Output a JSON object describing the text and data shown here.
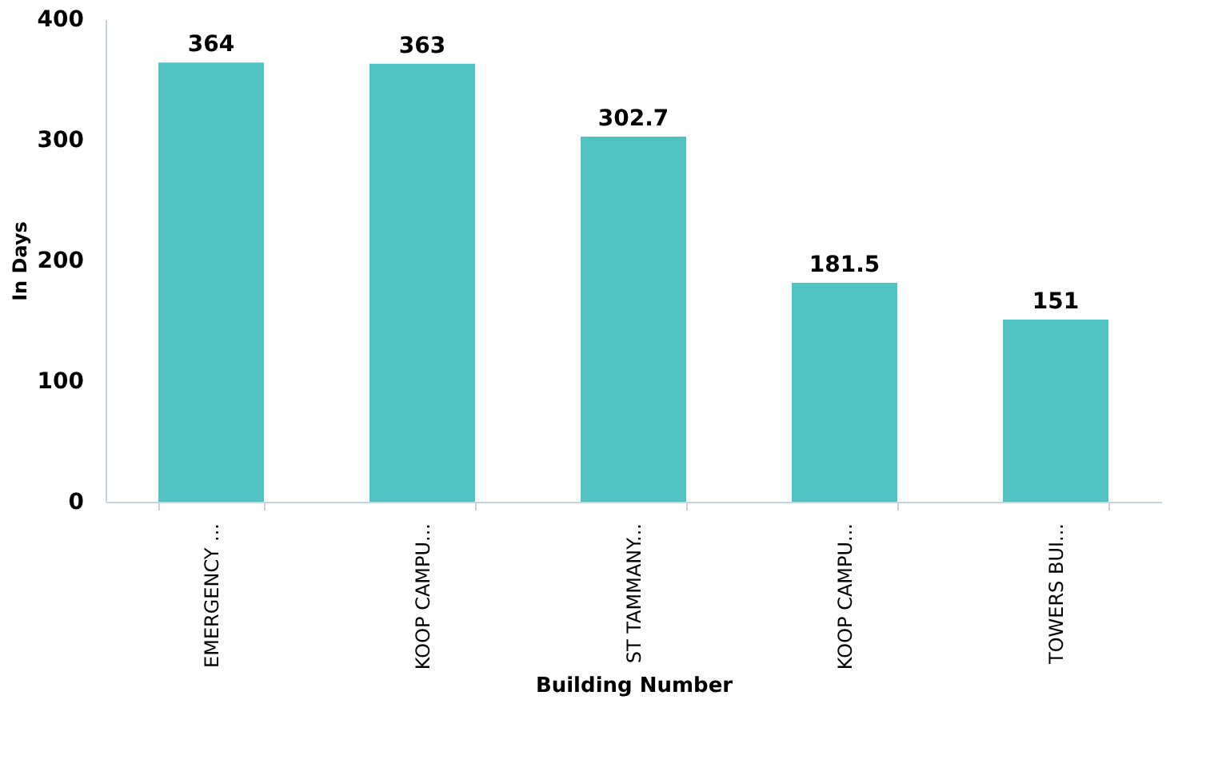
{
  "chart_data": {
    "type": "bar",
    "xlabel": "Building Number",
    "ylabel": "In Days",
    "categories": [
      "EMERGENCY ...",
      "KOOP CAMPU...",
      "ST TAMMANY...",
      "KOOP CAMPU...",
      "TOWERS BUI..."
    ],
    "values": [
      364,
      363,
      302.7,
      181.5,
      151
    ],
    "color": "#52c3c3",
    "ylim": [
      0,
      400
    ],
    "yticks": [
      0,
      100,
      200,
      300,
      400
    ],
    "grid": false,
    "data_labels": true
  }
}
